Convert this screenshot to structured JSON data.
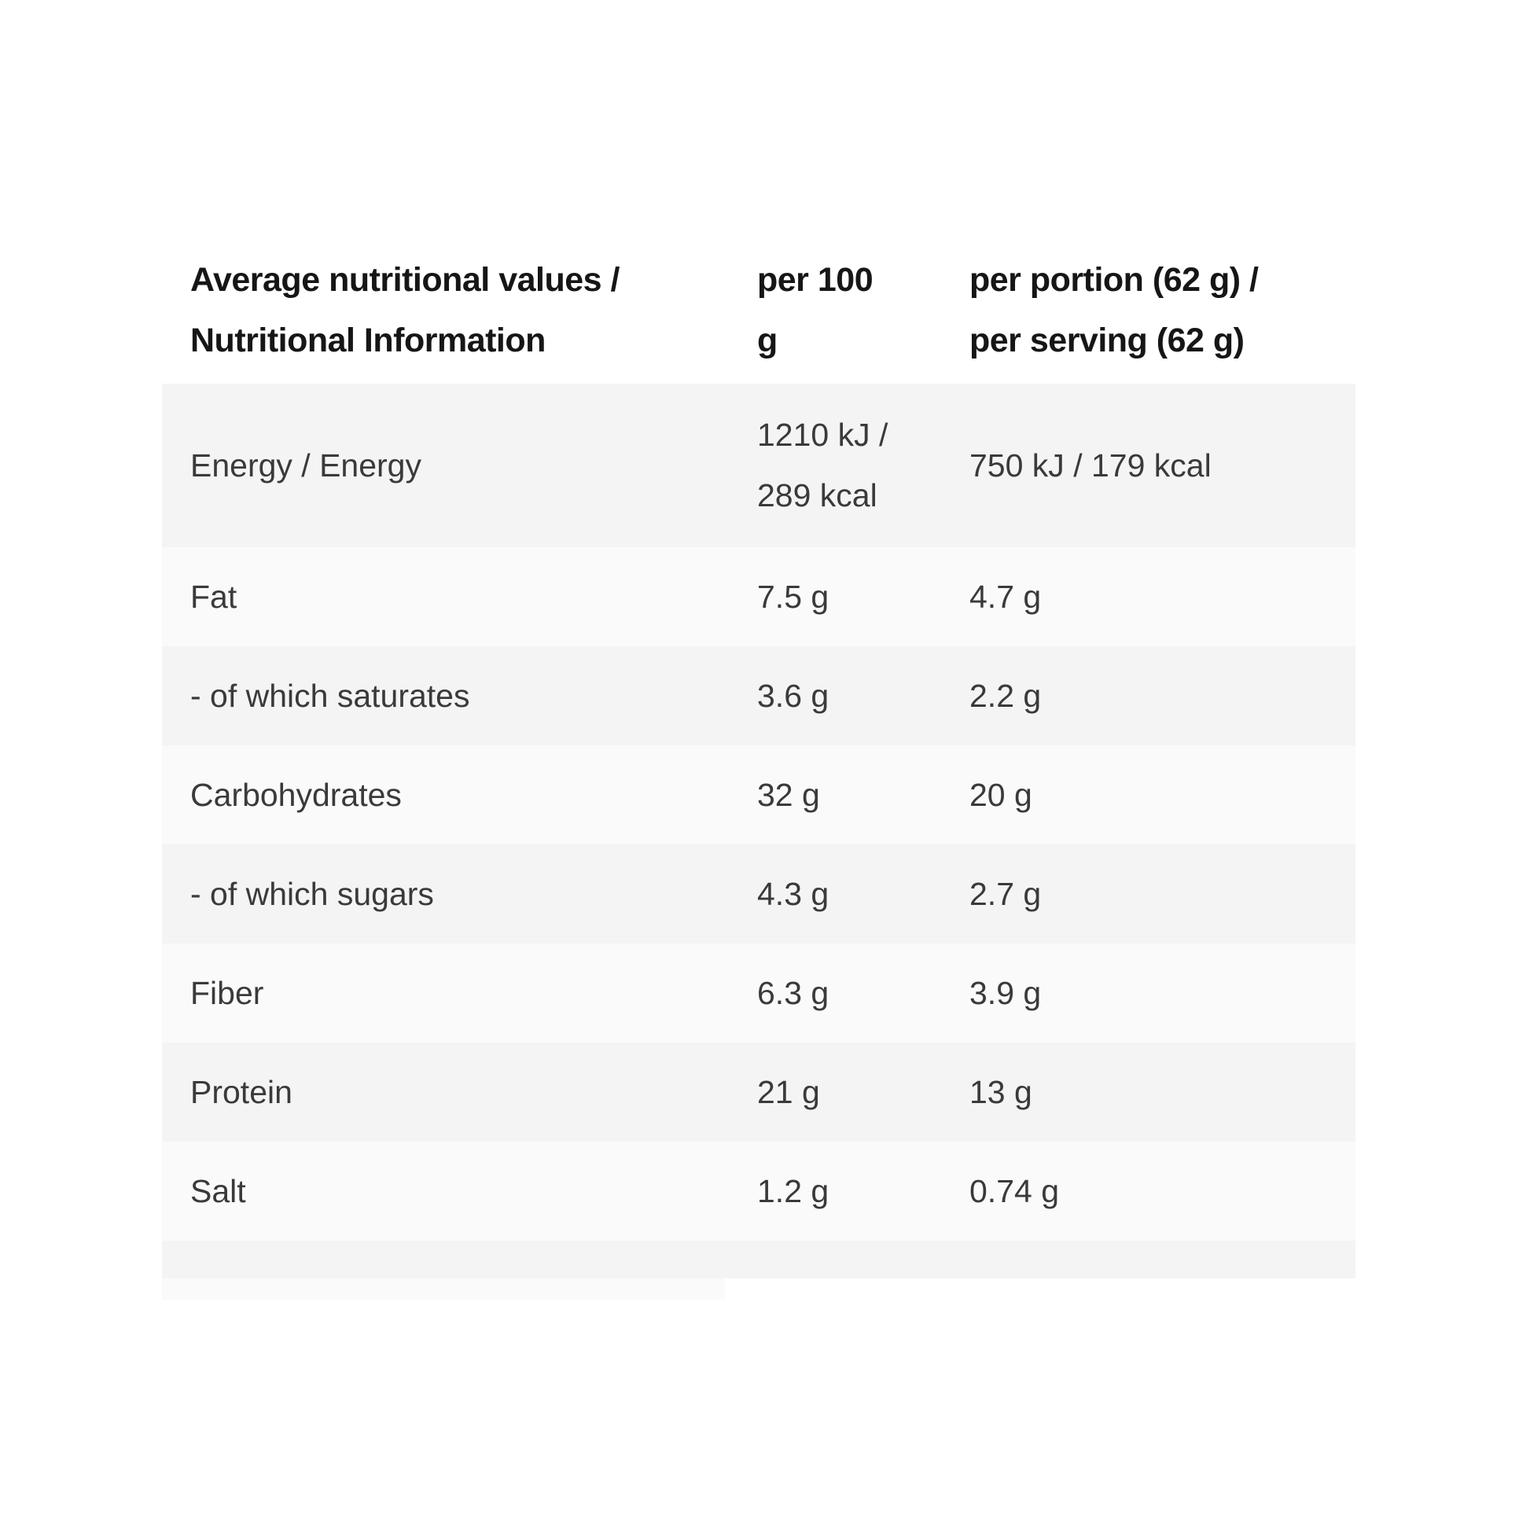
{
  "theme": {
    "page-bg": "#ffffff",
    "shaded-row": "#f4f4f4",
    "light-row": "#fafafa",
    "header-text": "#161616",
    "body-text": "#3a3a3a"
  },
  "table": {
    "header": {
      "col1": "Average nutritional values /\nNutritional Information",
      "col2": "per 100\ng",
      "col3": "per portion (62 g) /\nper serving (62 g)"
    },
    "rows": [
      {
        "label": "Energy / Energy",
        "per_100g": "1210 kJ /\n289 kcal",
        "per_portion": "750 kJ / 179 kcal"
      },
      {
        "label": "Fat",
        "per_100g": "7.5 g",
        "per_portion": "4.7 g"
      },
      {
        "label": "- of which saturates",
        "per_100g": "3.6 g",
        "per_portion": "2.2 g"
      },
      {
        "label": "Carbohydrates",
        "per_100g": "32 g",
        "per_portion": "20 g"
      },
      {
        "label": "- of which sugars",
        "per_100g": "4.3 g",
        "per_portion": "2.7 g"
      },
      {
        "label": "Fiber",
        "per_100g": "6.3 g",
        "per_portion": "3.9 g"
      },
      {
        "label": "Protein",
        "per_100g": "21 g",
        "per_portion": "13 g"
      },
      {
        "label": "Salt",
        "per_100g": "1.2 g",
        "per_portion": "0.74 g"
      }
    ]
  }
}
